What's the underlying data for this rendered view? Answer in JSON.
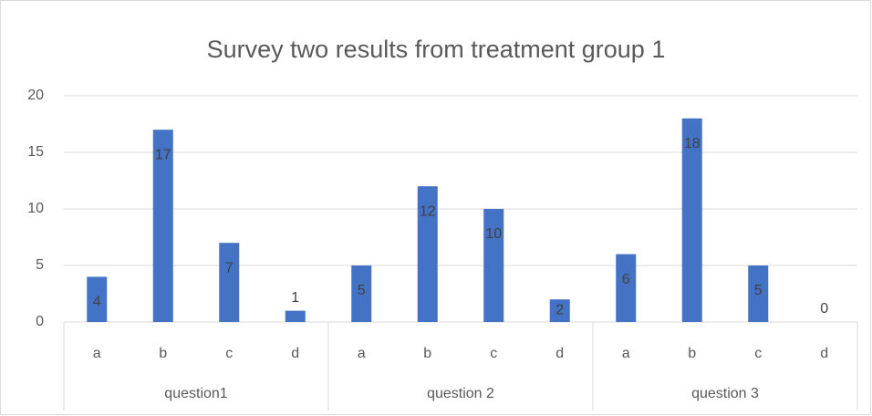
{
  "chart_data": {
    "type": "bar",
    "title": "Survey two results from treatment group 1",
    "categories": [
      "a",
      "b",
      "c",
      "d",
      "a",
      "b",
      "c",
      "d",
      "a",
      "b",
      "c",
      "d"
    ],
    "groups": [
      "question1",
      "question 2",
      "question 3"
    ],
    "values": [
      4,
      17,
      7,
      1,
      5,
      12,
      10,
      2,
      6,
      18,
      5,
      0
    ],
    "color": "#4472c4",
    "ylim": [
      0,
      20
    ],
    "yticks": [
      0,
      5,
      10,
      15,
      20
    ],
    "grid": true
  }
}
